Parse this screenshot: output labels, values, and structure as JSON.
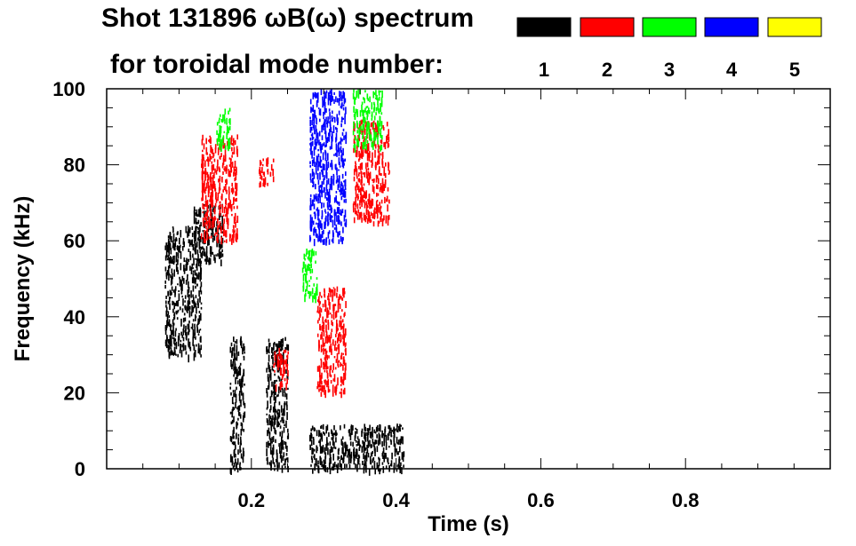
{
  "header": {
    "title_line1": "Shot 131896 ωB(ω) spectrum",
    "title_line2": "for toroidal mode number:"
  },
  "chart_data": {
    "type": "heatmap",
    "title": "Shot 131896 ωB(ω) spectrum",
    "xlabel": "Time (s)",
    "ylabel": "Frequency (kHz)",
    "xlim": [
      0.0,
      1.0
    ],
    "ylim": [
      0,
      100
    ],
    "x_ticks": [
      "0.2",
      "0.4",
      "0.6",
      "0.8"
    ],
    "x_tick_values": [
      0.2,
      0.4,
      0.6,
      0.8
    ],
    "y_ticks": [
      "0",
      "20",
      "40",
      "60",
      "80",
      "100"
    ],
    "y_tick_values": [
      0,
      20,
      40,
      60,
      80,
      100
    ],
    "legend": {
      "title": "for toroidal mode number:",
      "placement": "top-right",
      "entries": [
        {
          "label": "1",
          "color": "#000000"
        },
        {
          "label": "2",
          "color": "#ff0000"
        },
        {
          "label": "3",
          "color": "#00ff00"
        },
        {
          "label": "4",
          "color": "#0000ff"
        },
        {
          "label": "5",
          "color": "#ffff00"
        }
      ]
    },
    "series": [
      {
        "name": "1",
        "color": "#000000",
        "regions": [
          {
            "t": [
              0.08,
              0.13
            ],
            "f": [
              30,
              64
            ]
          },
          {
            "t": [
              0.12,
              0.16
            ],
            "f": [
              55,
              70
            ]
          },
          {
            "t": [
              0.17,
              0.19
            ],
            "f": [
              0,
              35
            ]
          },
          {
            "t": [
              0.22,
              0.25
            ],
            "f": [
              0,
              35
            ]
          },
          {
            "t": [
              0.28,
              0.41
            ],
            "f": [
              0,
              12
            ]
          }
        ]
      },
      {
        "name": "2",
        "color": "#ff0000",
        "regions": [
          {
            "t": [
              0.13,
              0.18
            ],
            "f": [
              60,
              88
            ]
          },
          {
            "t": [
              0.21,
              0.23
            ],
            "f": [
              75,
              82
            ]
          },
          {
            "t": [
              0.23,
              0.25
            ],
            "f": [
              22,
              32
            ]
          },
          {
            "t": [
              0.29,
              0.33
            ],
            "f": [
              20,
              48
            ]
          },
          {
            "t": [
              0.34,
              0.39
            ],
            "f": [
              65,
              92
            ]
          }
        ]
      },
      {
        "name": "3",
        "color": "#00ff00",
        "regions": [
          {
            "t": [
              0.15,
              0.17
            ],
            "f": [
              85,
              95
            ]
          },
          {
            "t": [
              0.27,
              0.29
            ],
            "f": [
              45,
              58
            ]
          },
          {
            "t": [
              0.34,
              0.38
            ],
            "f": [
              85,
              100
            ]
          }
        ]
      },
      {
        "name": "4",
        "color": "#0000ff",
        "regions": [
          {
            "t": [
              0.28,
              0.33
            ],
            "f": [
              60,
              100
            ]
          }
        ]
      },
      {
        "name": "5",
        "color": "#ffff00",
        "regions": []
      }
    ]
  }
}
